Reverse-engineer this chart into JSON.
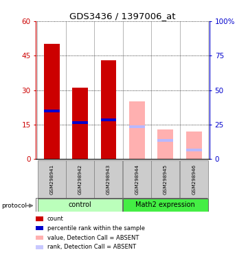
{
  "title": "GDS3436 / 1397006_at",
  "samples": [
    "GSM298941",
    "GSM298942",
    "GSM298943",
    "GSM298944",
    "GSM298945",
    "GSM298946"
  ],
  "group_labels": [
    "control",
    "Math2 expression"
  ],
  "group_colors": [
    "#bbffbb",
    "#44ee44"
  ],
  "bar_color_present": "#cc0000",
  "bar_color_absent": "#ffb0b0",
  "rank_color_present": "#0000cc",
  "rank_color_absent": "#b8b8ff",
  "count_values": [
    50,
    31,
    43,
    0,
    0,
    0
  ],
  "rank_present_values": [
    21,
    16,
    17,
    0,
    0,
    0
  ],
  "absent_value_values": [
    0,
    0,
    0,
    25,
    13,
    12
  ],
  "absent_rank_values": [
    0,
    0,
    0,
    14,
    8,
    4
  ],
  "ylim_left": [
    0,
    60
  ],
  "ylim_right": [
    0,
    100
  ],
  "yticks_left": [
    0,
    15,
    30,
    45,
    60
  ],
  "ytick_labels_left": [
    "0",
    "15",
    "30",
    "45",
    "60"
  ],
  "yticks_right": [
    0,
    25,
    50,
    75,
    100
  ],
  "ytick_labels_right": [
    "0",
    "25",
    "50",
    "75",
    "100%"
  ],
  "left_axis_color": "#cc0000",
  "right_axis_color": "#0000cc",
  "bg_color": "#ffffff",
  "legend_items": [
    {
      "color": "#cc0000",
      "label": "count"
    },
    {
      "color": "#0000cc",
      "label": "percentile rank within the sample"
    },
    {
      "color": "#ffb0b0",
      "label": "value, Detection Call = ABSENT"
    },
    {
      "color": "#c8c8ff",
      "label": "rank, Detection Call = ABSENT"
    }
  ]
}
